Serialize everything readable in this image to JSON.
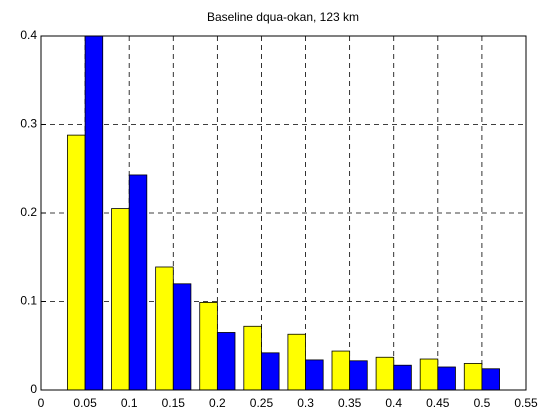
{
  "chart_data": {
    "type": "bar",
    "title": "Baseline dqua-okan, 123 km",
    "x": [
      0.05,
      0.1,
      0.15,
      0.2,
      0.25,
      0.3,
      0.35,
      0.4,
      0.45,
      0.5
    ],
    "series": [
      {
        "color": "#ffff00",
        "values": [
          0.288,
          0.205,
          0.139,
          0.099,
          0.072,
          0.063,
          0.044,
          0.037,
          0.035,
          0.03
        ]
      },
      {
        "color": "#0000ff",
        "values": [
          0.4,
          0.243,
          0.12,
          0.065,
          0.042,
          0.034,
          0.033,
          0.028,
          0.026,
          0.024
        ]
      }
    ],
    "xlim": [
      0,
      0.55
    ],
    "xticks": [
      0,
      0.05,
      0.1,
      0.15,
      0.2,
      0.25,
      0.3,
      0.35,
      0.4,
      0.45,
      0.5,
      0.55
    ],
    "ylim": [
      0,
      0.4
    ],
    "yticks": [
      0,
      0.1,
      0.2,
      0.3,
      0.4
    ],
    "grid": true
  }
}
